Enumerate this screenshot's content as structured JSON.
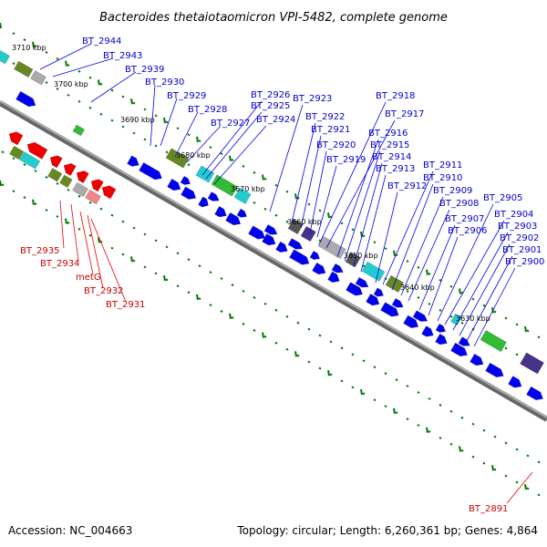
{
  "title": "Bacteroides thetaiotaomicron VPI-5482, complete genome",
  "footer": {
    "accession": "Accession: NC_004663",
    "topology": "Topology: circular; Length: 6,260,361 bp; Genes: 4,864"
  },
  "kbp_ticks": [
    "3710 kbp",
    "3700 kbp",
    "3690 kbp",
    "3680 kbp",
    "3670 kbp",
    "3660 kbp",
    "3650 kbp",
    "3640 kbp",
    "3630 kbp"
  ],
  "forward_genes": [
    "BT_2944",
    "BT_2943",
    "BT_2939",
    "BT_2930",
    "BT_2929",
    "BT_2928",
    "BT_2927",
    "BT_2926",
    "BT_2925",
    "BT_2924",
    "BT_2923",
    "BT_2922",
    "BT_2921",
    "BT_2920",
    "BT_2919",
    "BT_2918",
    "BT_2917",
    "BT_2916",
    "BT_2915",
    "BT_2914",
    "BT_2913",
    "BT_2912",
    "BT_2911",
    "BT_2910",
    "BT_2909",
    "BT_2908",
    "BT_2907",
    "BT_2906",
    "BT_2905",
    "BT_2904",
    "BT_2903",
    "BT_2902",
    "BT_2901",
    "BT_2900"
  ],
  "reverse_genes": [
    "BT_2935",
    "BT_2934",
    "metG",
    "BT_2932",
    "BT_2931"
  ],
  "distant_gene": "BT_2891",
  "colors": {
    "forward": "#0000ee",
    "reverse": "#ee0000",
    "backbone": "#777777",
    "tick": "#007700",
    "olive": "#668822",
    "green": "#33bb33",
    "cyan": "#22cccc",
    "gray": "#aaaaaa",
    "darkgray": "#555555",
    "purple": "#443388",
    "pink": "#ee8888"
  }
}
